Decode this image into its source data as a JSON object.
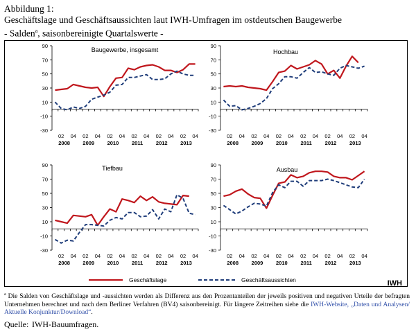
{
  "header": {
    "figure_label": "Abbildung 1:",
    "title": "Geschäftslage und Geschäftsaussichten laut IWH-Umfragen im ostdeutschen Baugewerbe",
    "subtitle_prefix": "- Salden",
    "subtitle_sup": "a",
    "subtitle_rest": ", saisonbereinigte Quartalswerte -"
  },
  "legend": {
    "items": [
      {
        "label": "Geschäftslage",
        "color": "#c0171d",
        "dash": "solid"
      },
      {
        "label": "Geschäftsaussichten",
        "color": "#1f3d7a",
        "dash": "dashed"
      }
    ],
    "brand": "IWH"
  },
  "footnote": {
    "marker": "a",
    "line1": "Die Salden von Geschäftslage und -aussichten werden als Differenz aus den Prozentanteilen der jeweils positiven und negativen Urteile der befragten",
    "line2_prefix": "Unternehmen berechnet und nach dem Berliner Verfahren (BV4) saisonbereinigt. Für längere Zeitreihen siehe die ",
    "line2_link": "IWH-Website, „Daten und",
    "line3_link": "Analysen/ Aktuelle Konjunktur/Download“",
    "line3_suffix": "."
  },
  "source": {
    "label": "Quelle:",
    "text": "IWH-Bauumfragen."
  },
  "chart_data": [
    {
      "type": "line",
      "title": "Baugewerbe, insgesamt",
      "ylim": [
        -30,
        90
      ],
      "yticks": [
        "90",
        "70",
        "50",
        "30",
        "10",
        "-10",
        "-30"
      ],
      "xticks_quarter": [
        "02",
        "04",
        "02",
        "04",
        "02",
        "04",
        "02",
        "04",
        "02",
        "04",
        "02",
        "04"
      ],
      "xticks_year": [
        "2008",
        "2009",
        "2010",
        "2011",
        "2012",
        "2013"
      ],
      "categories": [
        "2008Q1",
        "2008Q2",
        "2008Q3",
        "2008Q4",
        "2009Q1",
        "2009Q2",
        "2009Q3",
        "2009Q4",
        "2010Q1",
        "2010Q2",
        "2010Q3",
        "2010Q4",
        "2011Q1",
        "2011Q2",
        "2011Q3",
        "2011Q4",
        "2012Q1",
        "2012Q2",
        "2012Q3",
        "2012Q4",
        "2013Q1",
        "2013Q2",
        "2013Q3",
        "2013Q4"
      ],
      "series": [
        {
          "name": "Geschäftslage",
          "values": [
            27,
            28,
            29,
            35,
            33,
            31,
            30,
            31,
            18,
            32,
            44,
            45,
            58,
            56,
            60,
            62,
            63,
            60,
            55,
            55,
            52,
            56,
            64,
            64
          ]
        },
        {
          "name": "Geschäftsaussichten",
          "values": [
            10,
            1,
            -1,
            3,
            1,
            4,
            14,
            17,
            20,
            24,
            34,
            35,
            45,
            45,
            47,
            49,
            42,
            42,
            43,
            50,
            54,
            50,
            48,
            48
          ]
        }
      ]
    },
    {
      "type": "line",
      "title": "Hochbau",
      "ylim": [
        -30,
        90
      ],
      "yticks": [
        "90",
        "70",
        "50",
        "30",
        "10",
        "-10",
        "-30"
      ],
      "xticks_quarter": [
        "02",
        "04",
        "02",
        "04",
        "02",
        "04",
        "02",
        "04",
        "02",
        "04",
        "02",
        "04"
      ],
      "xticks_year": [
        "2008",
        "2009",
        "2010",
        "2011",
        "2012",
        "2013"
      ],
      "categories": [
        "2008Q1",
        "2008Q2",
        "2008Q3",
        "2008Q4",
        "2009Q1",
        "2009Q2",
        "2009Q3",
        "2009Q4",
        "2010Q1",
        "2010Q2",
        "2010Q3",
        "2010Q4",
        "2011Q1",
        "2011Q2",
        "2011Q3",
        "2011Q4",
        "2012Q1",
        "2012Q2",
        "2012Q3",
        "2012Q4",
        "2013Q1",
        "2013Q2",
        "2013Q3",
        "2013Q4"
      ],
      "series": [
        {
          "name": "Geschäftslage",
          "values": [
            32,
            33,
            32,
            33,
            31,
            30,
            29,
            27,
            39,
            52,
            54,
            62,
            57,
            60,
            63,
            69,
            64,
            50,
            55,
            44,
            61,
            75,
            66,
            null
          ]
        },
        {
          "name": "Geschäftsaussichten",
          "values": [
            13,
            4,
            5,
            -1,
            1,
            4,
            8,
            15,
            29,
            36,
            46,
            46,
            44,
            52,
            59,
            52,
            53,
            50,
            48,
            58,
            62,
            60,
            58,
            61
          ]
        }
      ]
    },
    {
      "type": "line",
      "title": "Tiefbau",
      "ylim": [
        -30,
        90
      ],
      "yticks": [
        "90",
        "70",
        "50",
        "30",
        "10",
        "-10",
        "-30"
      ],
      "xticks_quarter": [
        "02",
        "04",
        "02",
        "04",
        "02",
        "04",
        "02",
        "04",
        "02",
        "04",
        "02",
        "04"
      ],
      "xticks_year": [
        "2008",
        "2009",
        "2010",
        "2011",
        "2012",
        "2013"
      ],
      "categories": [
        "2008Q1",
        "2008Q2",
        "2008Q3",
        "2008Q4",
        "2009Q1",
        "2009Q2",
        "2009Q3",
        "2009Q4",
        "2010Q1",
        "2010Q2",
        "2010Q3",
        "2010Q4",
        "2011Q1",
        "2011Q2",
        "2011Q3",
        "2011Q4",
        "2012Q1",
        "2012Q2",
        "2012Q3",
        "2012Q4",
        "2013Q1",
        "2013Q2",
        "2013Q3",
        "2013Q4"
      ],
      "series": [
        {
          "name": "Geschäftslage",
          "values": [
            12,
            10,
            8,
            19,
            18,
            17,
            20,
            5,
            17,
            28,
            24,
            42,
            40,
            37,
            46,
            40,
            45,
            38,
            36,
            35,
            34,
            47,
            46,
            null
          ]
        },
        {
          "name": "Geschäftsaussichten",
          "values": [
            -15,
            -20,
            -16,
            -17,
            -5,
            6,
            6,
            5,
            4,
            12,
            16,
            14,
            23,
            23,
            17,
            18,
            27,
            14,
            28,
            24,
            48,
            43,
            22,
            20
          ]
        }
      ]
    },
    {
      "type": "line",
      "title": "Ausbau",
      "ylim": [
        -30,
        90
      ],
      "yticks": [
        "90",
        "70",
        "50",
        "30",
        "10",
        "-10",
        "-30"
      ],
      "xticks_quarter": [
        "02",
        "04",
        "02",
        "04",
        "02",
        "04",
        "02",
        "04",
        "02",
        "04",
        "02",
        "04"
      ],
      "xticks_year": [
        "2008",
        "2009",
        "2010",
        "2011",
        "2012",
        "2013"
      ],
      "categories": [
        "2008Q1",
        "2008Q2",
        "2008Q3",
        "2008Q4",
        "2009Q1",
        "2009Q2",
        "2009Q3",
        "2009Q4",
        "2010Q1",
        "2010Q2",
        "2010Q3",
        "2010Q4",
        "2011Q1",
        "2011Q2",
        "2011Q3",
        "2011Q4",
        "2012Q1",
        "2012Q2",
        "2012Q3",
        "2012Q4",
        "2013Q1",
        "2013Q2",
        "2013Q3",
        "2013Q4"
      ],
      "series": [
        {
          "name": "Geschäftslage",
          "values": [
            46,
            48,
            53,
            56,
            49,
            44,
            43,
            29,
            47,
            64,
            66,
            76,
            72,
            74,
            79,
            81,
            81,
            80,
            74,
            72,
            72,
            69,
            75,
            81
          ]
        },
        {
          "name": "Geschäftsaussichten",
          "values": [
            33,
            27,
            21,
            25,
            31,
            36,
            35,
            32,
            51,
            62,
            58,
            67,
            67,
            60,
            68,
            68,
            68,
            70,
            68,
            65,
            62,
            59,
            58,
            70
          ]
        }
      ]
    }
  ]
}
